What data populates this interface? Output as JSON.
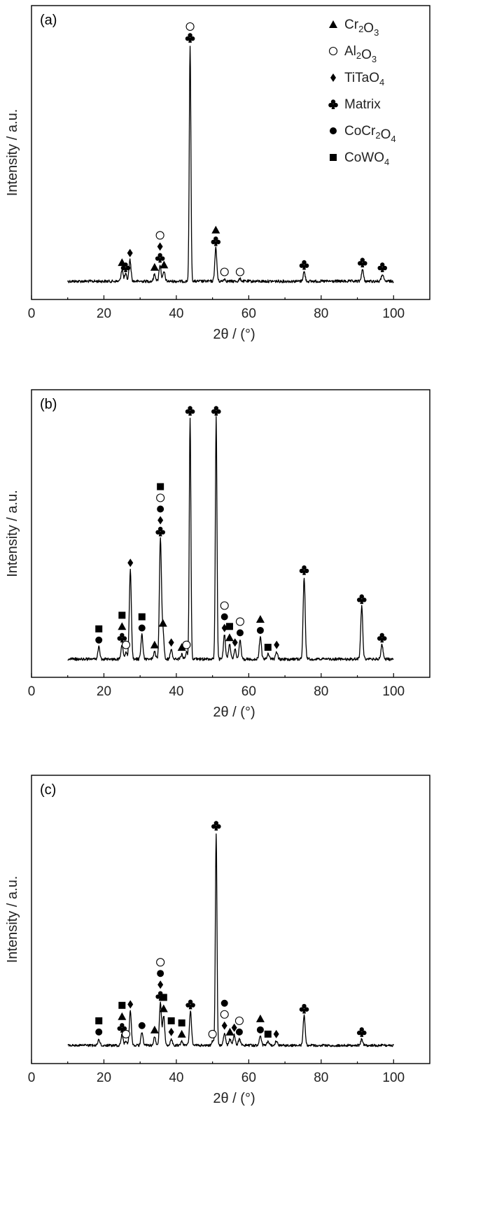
{
  "chart_data": [
    {
      "type": "line",
      "panel_label": "(a)",
      "xlabel": "2θ / (°)",
      "ylabel": "Intensity / a.u.",
      "xlim": [
        0,
        110
      ],
      "xticks": [
        0,
        20,
        40,
        60,
        80,
        100
      ],
      "x_range": [
        10,
        100
      ],
      "grid": false,
      "legend": {
        "placement": "top-right",
        "entries": [
          {
            "marker": "triangle",
            "base": "Cr",
            "parts": [
              [
                "Cr",
                ""
              ],
              [
                "2",
                "sub"
              ],
              [
                "O",
                ""
              ],
              [
                "3",
                "sub"
              ]
            ]
          },
          {
            "marker": "open-circle",
            "parts": [
              [
                "Al",
                ""
              ],
              [
                "2",
                "sub"
              ],
              [
                "O",
                ""
              ],
              [
                "3",
                "sub"
              ]
            ]
          },
          {
            "marker": "diamond",
            "parts": [
              [
                "TiTaO",
                ""
              ],
              [
                "4",
                "sub"
              ]
            ]
          },
          {
            "marker": "club",
            "parts": [
              [
                "Matrix",
                ""
              ]
            ]
          },
          {
            "marker": "filled-circle",
            "parts": [
              [
                "CoCr",
                ""
              ],
              [
                "2",
                "sub"
              ],
              [
                "O",
                ""
              ],
              [
                "4",
                "sub"
              ]
            ]
          },
          {
            "marker": "square",
            "parts": [
              [
                "CoWO",
                ""
              ],
              [
                "4",
                "sub"
              ]
            ]
          }
        ]
      },
      "peaks": [
        {
          "x": 25.0,
          "h": 0.05,
          "markers": [
            "triangle"
          ]
        },
        {
          "x": 26.0,
          "h": 0.03,
          "markers": [
            "club"
          ]
        },
        {
          "x": 27.2,
          "h": 0.09,
          "markers": [
            "diamond"
          ]
        },
        {
          "x": 34.0,
          "h": 0.03,
          "markers": [
            "triangle"
          ]
        },
        {
          "x": 35.5,
          "h": 0.07,
          "markers": [
            "club",
            "diamond",
            "open-circle"
          ]
        },
        {
          "x": 36.6,
          "h": 0.04,
          "markers": [
            "triangle"
          ]
        },
        {
          "x": 43.8,
          "h": 1.0,
          "markers": [
            "club",
            "open-circle"
          ]
        },
        {
          "x": 50.9,
          "h": 0.14,
          "markers": [
            "club",
            "triangle"
          ]
        },
        {
          "x": 53.3,
          "h": 0.01,
          "markers": [
            "open-circle"
          ]
        },
        {
          "x": 57.6,
          "h": 0.01,
          "markers": [
            "open-circle"
          ]
        },
        {
          "x": 75.3,
          "h": 0.04,
          "markers": [
            "club"
          ]
        },
        {
          "x": 91.4,
          "h": 0.05,
          "markers": [
            "club"
          ]
        },
        {
          "x": 96.9,
          "h": 0.03,
          "markers": [
            "club"
          ]
        }
      ]
    },
    {
      "type": "line",
      "panel_label": "(b)",
      "xlabel": "2θ / (°)",
      "ylabel": "Intensity / a.u.",
      "xlim": [
        0,
        110
      ],
      "xticks": [
        0,
        20,
        40,
        60,
        80,
        100
      ],
      "x_range": [
        10,
        100
      ],
      "grid": false,
      "peaks": [
        {
          "x": 18.6,
          "h": 0.05,
          "markers": [
            "filled-circle",
            "square"
          ]
        },
        {
          "x": 25.0,
          "h": 0.06,
          "markers": [
            "club",
            "triangle",
            "square"
          ]
        },
        {
          "x": 26.1,
          "h": 0.03,
          "markers": [
            "open-circle"
          ]
        },
        {
          "x": 27.3,
          "h": 0.37,
          "markers": [
            "diamond"
          ]
        },
        {
          "x": 30.5,
          "h": 0.1,
          "markers": [
            "filled-circle",
            "square"
          ]
        },
        {
          "x": 34.0,
          "h": 0.03,
          "markers": [
            "triangle"
          ]
        },
        {
          "x": 35.6,
          "h": 0.5,
          "markers": [
            "club",
            "diamond",
            "filled-circle",
            "open-circle",
            "square"
          ]
        },
        {
          "x": 36.3,
          "h": 0.12,
          "markers": [
            "triangle"
          ]
        },
        {
          "x": 38.6,
          "h": 0.04,
          "markers": [
            "diamond"
          ]
        },
        {
          "x": 41.5,
          "h": 0.02,
          "markers": [
            "triangle"
          ]
        },
        {
          "x": 42.8,
          "h": 0.03,
          "markers": [
            "open-circle"
          ]
        },
        {
          "x": 43.8,
          "h": 1.0,
          "markers": [
            "club"
          ]
        },
        {
          "x": 51.0,
          "h": 1.0,
          "markers": [
            "club"
          ]
        },
        {
          "x": 53.3,
          "h": 0.1,
          "markers": [
            "diamond",
            "filled-circle",
            "open-circle"
          ]
        },
        {
          "x": 54.7,
          "h": 0.06,
          "markers": [
            "triangle",
            "square"
          ]
        },
        {
          "x": 56.2,
          "h": 0.04,
          "markers": [
            "diamond"
          ]
        },
        {
          "x": 57.6,
          "h": 0.08,
          "markers": [
            "filled-circle",
            "open-circle"
          ]
        },
        {
          "x": 63.2,
          "h": 0.09,
          "markers": [
            "filled-circle",
            "triangle"
          ]
        },
        {
          "x": 65.3,
          "h": 0.02,
          "markers": [
            "square"
          ]
        },
        {
          "x": 67.7,
          "h": 0.03,
          "markers": [
            "diamond"
          ]
        },
        {
          "x": 75.3,
          "h": 0.34,
          "markers": [
            "club"
          ]
        },
        {
          "x": 91.2,
          "h": 0.22,
          "markers": [
            "club"
          ]
        },
        {
          "x": 96.8,
          "h": 0.06,
          "markers": [
            "club"
          ]
        }
      ]
    },
    {
      "type": "line",
      "panel_label": "(c)",
      "xlabel": "2θ / (°)",
      "ylabel": "Intensity / a.u.",
      "xlim": [
        0,
        110
      ],
      "xticks": [
        0,
        20,
        40,
        60,
        80,
        100
      ],
      "x_range": [
        10,
        100
      ],
      "grid": false,
      "peaks": [
        {
          "x": 18.6,
          "h": 0.03,
          "markers": [
            "filled-circle",
            "square"
          ]
        },
        {
          "x": 25.0,
          "h": 0.05,
          "markers": [
            "club",
            "triangle",
            "square"
          ]
        },
        {
          "x": 26.1,
          "h": 0.02,
          "markers": [
            "open-circle"
          ]
        },
        {
          "x": 27.3,
          "h": 0.16,
          "markers": [
            "diamond"
          ]
        },
        {
          "x": 30.5,
          "h": 0.06,
          "markers": [
            "filled-circle"
          ]
        },
        {
          "x": 34.0,
          "h": 0.04,
          "markers": [
            "triangle"
          ]
        },
        {
          "x": 35.6,
          "h": 0.2,
          "markers": [
            "club",
            "diamond",
            "filled-circle",
            "open-circle"
          ]
        },
        {
          "x": 36.5,
          "h": 0.14,
          "markers": [
            "triangle",
            "square"
          ]
        },
        {
          "x": 38.6,
          "h": 0.03,
          "markers": [
            "diamond",
            "square"
          ]
        },
        {
          "x": 41.5,
          "h": 0.02,
          "markers": [
            "triangle",
            "square"
          ]
        },
        {
          "x": 43.9,
          "h": 0.16,
          "markers": [
            "club"
          ]
        },
        {
          "x": 50.0,
          "h": 0.02,
          "markers": [
            "open-circle"
          ]
        },
        {
          "x": 51.0,
          "h": 1.0,
          "markers": [
            "club"
          ]
        },
        {
          "x": 53.3,
          "h": 0.06,
          "markers": [
            "diamond",
            "open-circle",
            "filled-circle"
          ]
        },
        {
          "x": 54.8,
          "h": 0.03,
          "markers": [
            "triangle"
          ]
        },
        {
          "x": 56.0,
          "h": 0.05,
          "markers": [
            "diamond"
          ]
        },
        {
          "x": 57.4,
          "h": 0.03,
          "markers": [
            "filled-circle",
            "open-circle"
          ]
        },
        {
          "x": 63.2,
          "h": 0.04,
          "markers": [
            "filled-circle",
            "triangle"
          ]
        },
        {
          "x": 65.3,
          "h": 0.02,
          "markers": [
            "square"
          ]
        },
        {
          "x": 67.6,
          "h": 0.02,
          "markers": [
            "diamond"
          ]
        },
        {
          "x": 75.3,
          "h": 0.14,
          "markers": [
            "club"
          ]
        },
        {
          "x": 91.2,
          "h": 0.03,
          "markers": [
            "club"
          ]
        }
      ]
    }
  ]
}
